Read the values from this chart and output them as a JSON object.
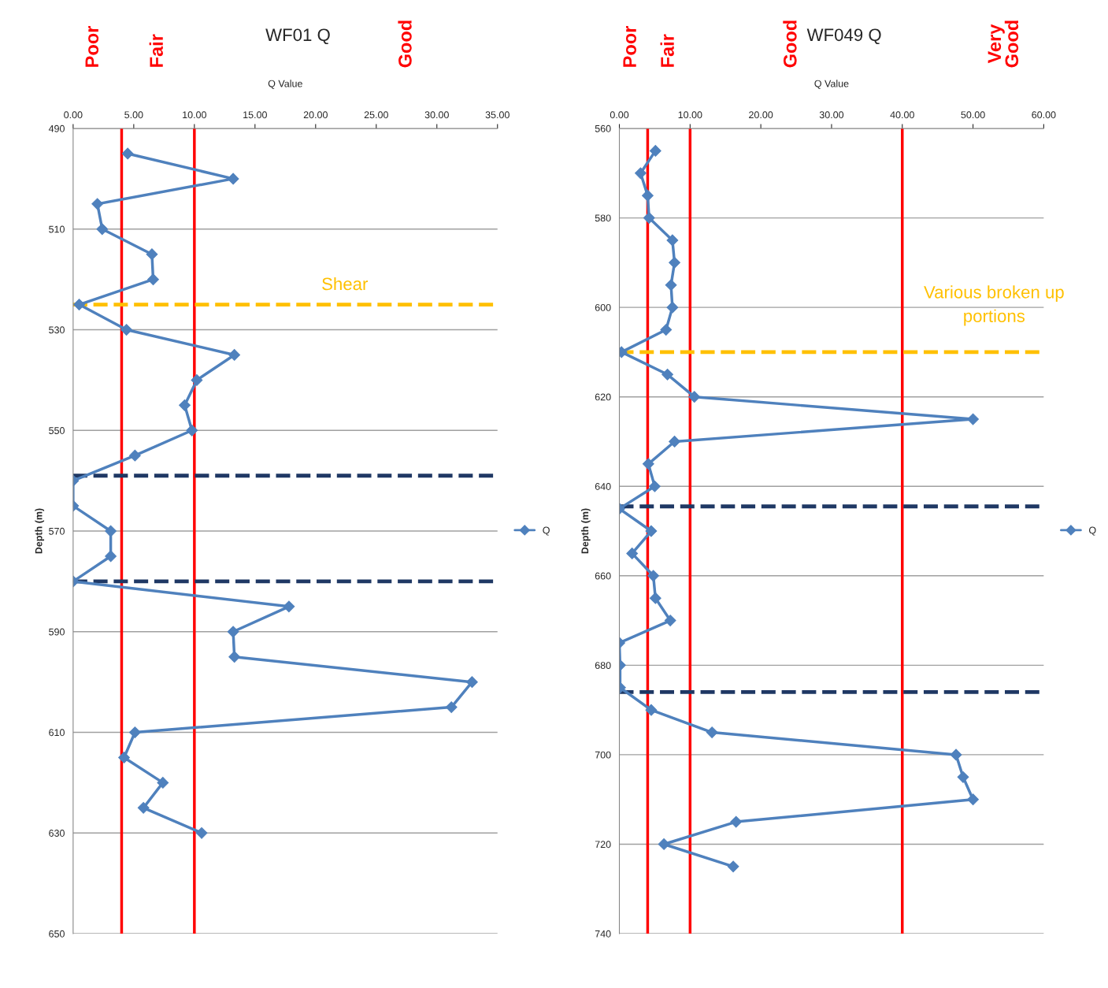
{
  "chart_data": [
    {
      "type": "line",
      "title": "WF01 Q",
      "xlabel": "Q Value",
      "ylabel": "Depth (m)",
      "series": [
        {
          "name": "Q",
          "color": "#4f81bd",
          "x": [
            4.5,
            13.2,
            2.0,
            2.4,
            6.5,
            6.6,
            0.5,
            4.4,
            13.3,
            10.2,
            9.2,
            9.8,
            5.1,
            0,
            0,
            3.1,
            3.1,
            0,
            17.8,
            13.2,
            13.3,
            32.9,
            31.2,
            5.1,
            4.2,
            7.4,
            5.8,
            10.6
          ],
          "values": [
            495,
            500,
            505,
            510,
            515,
            520,
            525,
            530,
            535,
            540,
            545,
            550,
            555,
            560,
            565,
            570,
            575,
            580,
            585,
            590,
            595,
            600,
            605,
            610,
            615,
            620,
            625,
            630
          ]
        }
      ],
      "xlim": [
        0,
        35
      ],
      "xticks": [
        {
          "value": 0,
          "label": "0.00"
        },
        {
          "value": 5,
          "label": "5.00"
        },
        {
          "value": 10,
          "label": "10.00"
        },
        {
          "value": 15,
          "label": "15.00"
        },
        {
          "value": 20,
          "label": "20.00"
        },
        {
          "value": 25,
          "label": "25.00"
        },
        {
          "value": 30,
          "label": "30.00"
        },
        {
          "value": 35,
          "label": "35.00"
        }
      ],
      "ylim": [
        650,
        490
      ],
      "yticks": [
        490,
        510,
        530,
        550,
        570,
        590,
        610,
        630,
        650
      ],
      "ref_lines": [
        {
          "axis": "x",
          "value": 4,
          "color": "#ff0000",
          "line_style": "solid"
        },
        {
          "axis": "x",
          "value": 10,
          "color": "#ff0000",
          "line_style": "solid"
        },
        {
          "axis": "y",
          "value": 525,
          "color": "#ffc000",
          "line_style": "dashed"
        },
        {
          "axis": "y",
          "value": 559,
          "color": "#1f3864",
          "line_style": "dashed"
        },
        {
          "axis": "y",
          "value": 580,
          "color": "#1f3864",
          "line_style": "dashed"
        }
      ],
      "annotations": [
        "Poor",
        "Fair",
        "Good",
        "Shear"
      ],
      "grid": "y",
      "legend": "right",
      "marker": "diamond",
      "line_style": "solid"
    },
    {
      "type": "line",
      "title": "WF049 Q",
      "xlabel": "Q Value",
      "ylabel": "Depth (m)",
      "series": [
        {
          "name": "Q",
          "color": "#4f81bd",
          "x": [
            5.1,
            3.0,
            4.0,
            4.2,
            7.5,
            7.8,
            7.3,
            7.5,
            6.6,
            0.3,
            6.8,
            10.6,
            50.0,
            7.8,
            4.1,
            5.0,
            0,
            4.5,
            1.8,
            4.8,
            5.1,
            7.2,
            0,
            0.1,
            0.1,
            4.5,
            13.1,
            47.6,
            48.6,
            50.0,
            16.5,
            6.3,
            16.1
          ],
          "values": [
            565,
            570,
            575,
            580,
            585,
            590,
            595,
            600,
            605,
            610,
            615,
            620,
            625,
            630,
            635,
            640,
            645,
            650,
            655,
            660,
            665,
            670,
            675,
            680,
            685,
            690,
            695,
            700,
            705,
            710,
            715,
            720,
            725
          ]
        }
      ],
      "xlim": [
        0,
        60
      ],
      "xticks": [
        {
          "value": 0,
          "label": "0.00"
        },
        {
          "value": 10,
          "label": "10.00"
        },
        {
          "value": 20,
          "label": "20.00"
        },
        {
          "value": 30,
          "label": "30.00"
        },
        {
          "value": 40,
          "label": "40.00"
        },
        {
          "value": 50,
          "label": "50.00"
        },
        {
          "value": 60,
          "label": "60.00"
        }
      ],
      "ylim": [
        740,
        560
      ],
      "yticks": [
        560,
        580,
        600,
        620,
        640,
        660,
        680,
        700,
        720,
        740
      ],
      "ref_lines": [
        {
          "axis": "x",
          "value": 4,
          "color": "#ff0000",
          "line_style": "solid"
        },
        {
          "axis": "x",
          "value": 10,
          "color": "#ff0000",
          "line_style": "solid"
        },
        {
          "axis": "x",
          "value": 40,
          "color": "#ff0000",
          "line_style": "solid"
        },
        {
          "axis": "y",
          "value": 610,
          "color": "#ffc000",
          "line_style": "dashed"
        },
        {
          "axis": "y",
          "value": 644.5,
          "color": "#1f3864",
          "line_style": "dashed"
        },
        {
          "axis": "y",
          "value": 686,
          "color": "#1f3864",
          "line_style": "dashed"
        }
      ],
      "annotations": [
        "Poor",
        "Fair",
        "Good",
        "Very\nGood",
        "Various broken up\nportions"
      ],
      "grid": "y",
      "legend": "right",
      "marker": "diamond",
      "line_style": "solid"
    }
  ]
}
